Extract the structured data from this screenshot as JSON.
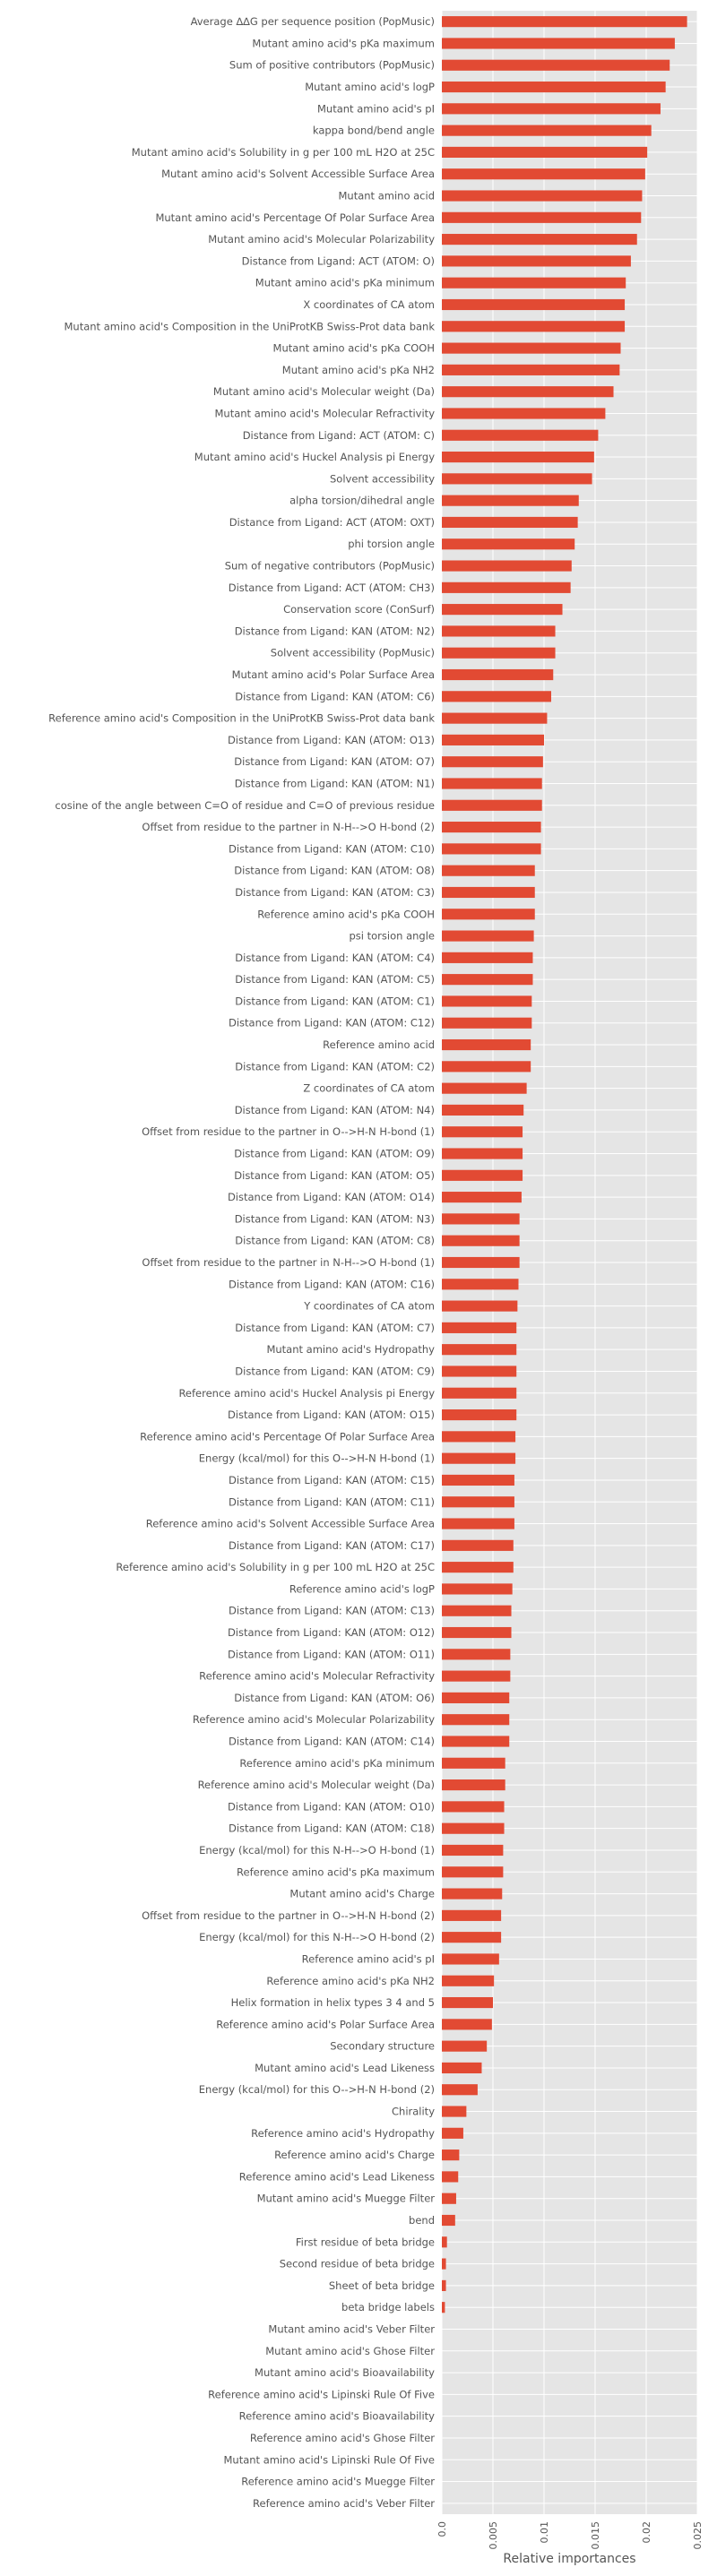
{
  "chart_data": {
    "type": "bar",
    "orientation": "horizontal",
    "xlabel": "Relative importances",
    "ylabel": "",
    "xlim": [
      0,
      0.025
    ],
    "xticks": [
      "0.0",
      "0.005",
      "0.01",
      "0.015",
      "0.02",
      "0.025"
    ],
    "grid": true,
    "bar_color": "#E24A33",
    "background_color": "#E5E5E5",
    "categories": [
      "Average ∆∆G per sequence position (PopMusic)",
      "Mutant amino acid's pKa maximum",
      "Sum of positive contributors (PopMusic)",
      "Mutant amino acid's logP",
      "Mutant amino acid's pI",
      "kappa bond/bend angle",
      "Mutant amino acid's Solubility in g per 100 mL H2O at 25C",
      "Mutant amino acid's Solvent Accessible Surface Area",
      "Mutant amino acid",
      "Mutant amino acid's Percentage Of Polar Surface Area",
      "Mutant amino acid's Molecular Polarizability",
      "Distance from Ligand: ACT (ATOM: O)",
      "Mutant amino acid's pKa minimum",
      "X coordinates of CA atom",
      "Mutant amino acid's Composition in the UniProtKB Swiss-Prot data bank",
      "Mutant amino acid's pKa COOH",
      "Mutant amino acid's pKa NH2",
      "Mutant amino acid's Molecular weight (Da)",
      "Mutant amino acid's Molecular Refractivity",
      "Distance from Ligand: ACT (ATOM: C)",
      "Mutant amino acid's Huckel Analysis pi Energy",
      "Solvent accessibility",
      "alpha torsion/dihedral angle",
      "Distance from Ligand: ACT (ATOM: OXT)",
      "phi torsion angle",
      "Sum of negative contributors (PopMusic)",
      "Distance from Ligand: ACT (ATOM: CH3)",
      "Conservation score (ConSurf)",
      "Distance from Ligand: KAN (ATOM: N2)",
      "Solvent accessibility (PopMusic)",
      "Mutant amino acid's Polar Surface Area",
      "Distance from Ligand: KAN (ATOM: C6)",
      "Reference amino acid's Composition in the UniProtKB Swiss-Prot data bank",
      "Distance from Ligand: KAN (ATOM: O13)",
      "Distance from Ligand: KAN (ATOM: O7)",
      "Distance from Ligand: KAN (ATOM: N1)",
      "cosine of the angle between C=O of residue and C=O of previous residue",
      "Offset from residue to the partner in N-H-->O H-bond (2)",
      "Distance from Ligand: KAN (ATOM: C10)",
      "Distance from Ligand: KAN (ATOM: O8)",
      "Distance from Ligand: KAN (ATOM: C3)",
      "Reference amino acid's pKa COOH",
      "psi torsion angle",
      "Distance from Ligand: KAN (ATOM: C4)",
      "Distance from Ligand: KAN (ATOM: C5)",
      "Distance from Ligand: KAN (ATOM: C1)",
      "Distance from Ligand: KAN (ATOM: C12)",
      "Reference amino acid",
      "Distance from Ligand: KAN (ATOM: C2)",
      "Z coordinates of CA atom",
      "Distance from Ligand: KAN (ATOM: N4)",
      "Offset from residue to the partner in O-->H-N H-bond (1)",
      "Distance from Ligand: KAN (ATOM: O9)",
      "Distance from Ligand: KAN (ATOM: O5)",
      "Distance from Ligand: KAN (ATOM: O14)",
      "Distance from Ligand: KAN (ATOM: N3)",
      "Distance from Ligand: KAN (ATOM: C8)",
      "Offset from residue to the partner in N-H-->O H-bond (1)",
      "Distance from Ligand: KAN (ATOM: C16)",
      "Y coordinates of CA atom",
      "Distance from Ligand: KAN (ATOM: C7)",
      "Mutant amino acid's Hydropathy",
      "Distance from Ligand: KAN (ATOM: C9)",
      "Reference amino acid's Huckel Analysis pi Energy",
      "Distance from Ligand: KAN (ATOM: O15)",
      "Reference amino acid's Percentage Of Polar Surface Area",
      "Energy (kcal/mol) for this O-->H-N H-bond (1)",
      "Distance from Ligand: KAN (ATOM: C15)",
      "Distance from Ligand: KAN (ATOM: C11)",
      "Reference amino acid's Solvent Accessible Surface Area",
      "Distance from Ligand: KAN (ATOM: C17)",
      "Reference amino acid's Solubility in g per 100 mL H2O at 25C",
      "Reference amino acid's logP",
      "Distance from Ligand: KAN (ATOM: C13)",
      "Distance from Ligand: KAN (ATOM: O12)",
      "Distance from Ligand: KAN (ATOM: O11)",
      "Reference amino acid's Molecular Refractivity",
      "Distance from Ligand: KAN (ATOM: O6)",
      "Reference amino acid's Molecular Polarizability",
      "Distance from Ligand: KAN (ATOM: C14)",
      "Reference amino acid's pKa minimum",
      "Reference amino acid's Molecular weight (Da)",
      "Distance from Ligand: KAN (ATOM: O10)",
      "Distance from Ligand: KAN (ATOM: C18)",
      "Energy (kcal/mol) for this N-H-->O H-bond (1)",
      "Reference amino acid's pKa maximum",
      "Mutant amino acid's Charge",
      "Offset from residue to the partner in O-->H-N H-bond (2)",
      "Energy (kcal/mol) for this N-H-->O H-bond (2)",
      "Reference amino acid's pI",
      "Reference amino acid's pKa NH2",
      "Helix formation in helix types 3 4 and 5",
      "Reference amino acid's Polar Surface Area",
      "Secondary structure",
      "Mutant amino acid's Lead Likeness",
      "Energy (kcal/mol) for this O-->H-N H-bond (2)",
      "Chirality",
      "Reference amino acid's Hydropathy",
      "Reference amino acid's Charge",
      "Reference amino acid's Lead Likeness",
      "Mutant amino acid's Muegge Filter",
      "bend",
      "First residue of beta bridge",
      "Second residue of beta bridge",
      "Sheet of beta bridge",
      "beta bridge labels",
      "Mutant amino acid's Veber Filter",
      "Mutant amino acid's Ghose Filter",
      "Mutant amino acid's Bioavailability",
      "Reference amino acid's Lipinski Rule Of Five",
      "Reference amino acid's Bioavailability",
      "Reference amino acid's Ghose Filter",
      "Mutant amino acid's Lipinski Rule Of Five",
      "Reference amino acid's Muegge Filter",
      "Reference amino acid's Veber Filter"
    ],
    "values": [
      0.024,
      0.0228,
      0.0223,
      0.0219,
      0.0214,
      0.0205,
      0.0201,
      0.0199,
      0.0196,
      0.0195,
      0.0191,
      0.0185,
      0.018,
      0.0179,
      0.0179,
      0.0175,
      0.0174,
      0.0168,
      0.016,
      0.0153,
      0.0149,
      0.0147,
      0.0134,
      0.0133,
      0.013,
      0.0127,
      0.0126,
      0.0118,
      0.0111,
      0.0111,
      0.0109,
      0.0107,
      0.0103,
      0.01,
      0.0099,
      0.0098,
      0.0098,
      0.0097,
      0.0097,
      0.0091,
      0.0091,
      0.0091,
      0.009,
      0.0089,
      0.0089,
      0.0088,
      0.0088,
      0.0087,
      0.0087,
      0.0083,
      0.008,
      0.0079,
      0.0079,
      0.0079,
      0.0078,
      0.0076,
      0.0076,
      0.0076,
      0.0075,
      0.0074,
      0.0073,
      0.0073,
      0.0073,
      0.0073,
      0.0073,
      0.0072,
      0.0072,
      0.0071,
      0.0071,
      0.0071,
      0.007,
      0.007,
      0.0069,
      0.0068,
      0.0068,
      0.0067,
      0.0067,
      0.0066,
      0.0066,
      0.0066,
      0.0062,
      0.0062,
      0.0061,
      0.0061,
      0.006,
      0.006,
      0.0059,
      0.0058,
      0.0058,
      0.0056,
      0.0051,
      0.005,
      0.0049,
      0.0044,
      0.0039,
      0.0035,
      0.0024,
      0.0021,
      0.0017,
      0.0016,
      0.0014,
      0.0013,
      0.0005,
      0.0004,
      0.0004,
      0.0003,
      0.0,
      0.0,
      0.0,
      0.0,
      0.0,
      0.0,
      0.0,
      0.0,
      0.0
    ]
  }
}
